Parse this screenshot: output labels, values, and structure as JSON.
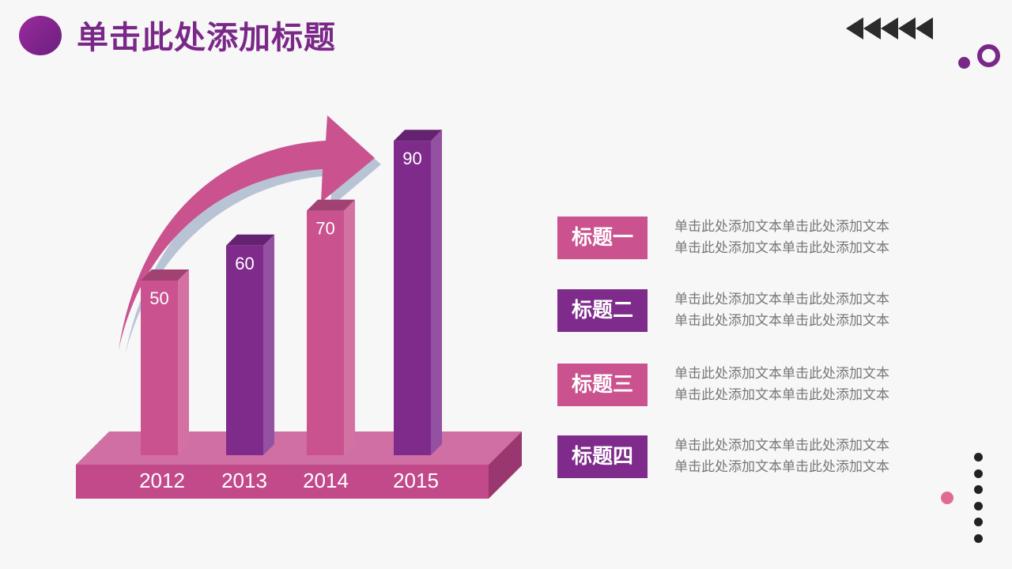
{
  "page": {
    "title": "单击此处添加标题"
  },
  "chart_data": {
    "type": "bar",
    "categories": [
      "2012",
      "2013",
      "2014",
      "2015"
    ],
    "values": [
      50,
      60,
      70,
      90
    ],
    "title": "",
    "xlabel": "",
    "ylabel": "",
    "ylim": [
      0,
      100
    ],
    "colors": [
      "#c9528f",
      "#7e2b8c",
      "#c9528f",
      "#7e2b8c"
    ],
    "trend_arrow": "up-right"
  },
  "legend": {
    "items": [
      {
        "label": "标题一",
        "line1": "单击此处添加文本单击此处添加文本",
        "line2": "单击此处添加文本单击此处添加文本",
        "color": "#c9528f"
      },
      {
        "label": "标题二",
        "line1": "单击此处添加文本单击此处添加文本",
        "line2": "单击此处添加文本单击此处添加文本",
        "color": "#7e2b8c"
      },
      {
        "label": "标题三",
        "line1": "单击此处添加文本单击此处添加文本",
        "line2": "单击此处添加文本单击此处添加文本",
        "color": "#c9528f"
      },
      {
        "label": "标题四",
        "line1": "单击此处添加文本单击此处添加文本",
        "line2": "单击此处添加文本单击此处添加文本",
        "color": "#7e2b8c"
      }
    ]
  },
  "decor": {
    "accent": "#7a2888",
    "pink": "#c9528f",
    "triangle_count": 5,
    "vertical_dot_count": 6
  }
}
